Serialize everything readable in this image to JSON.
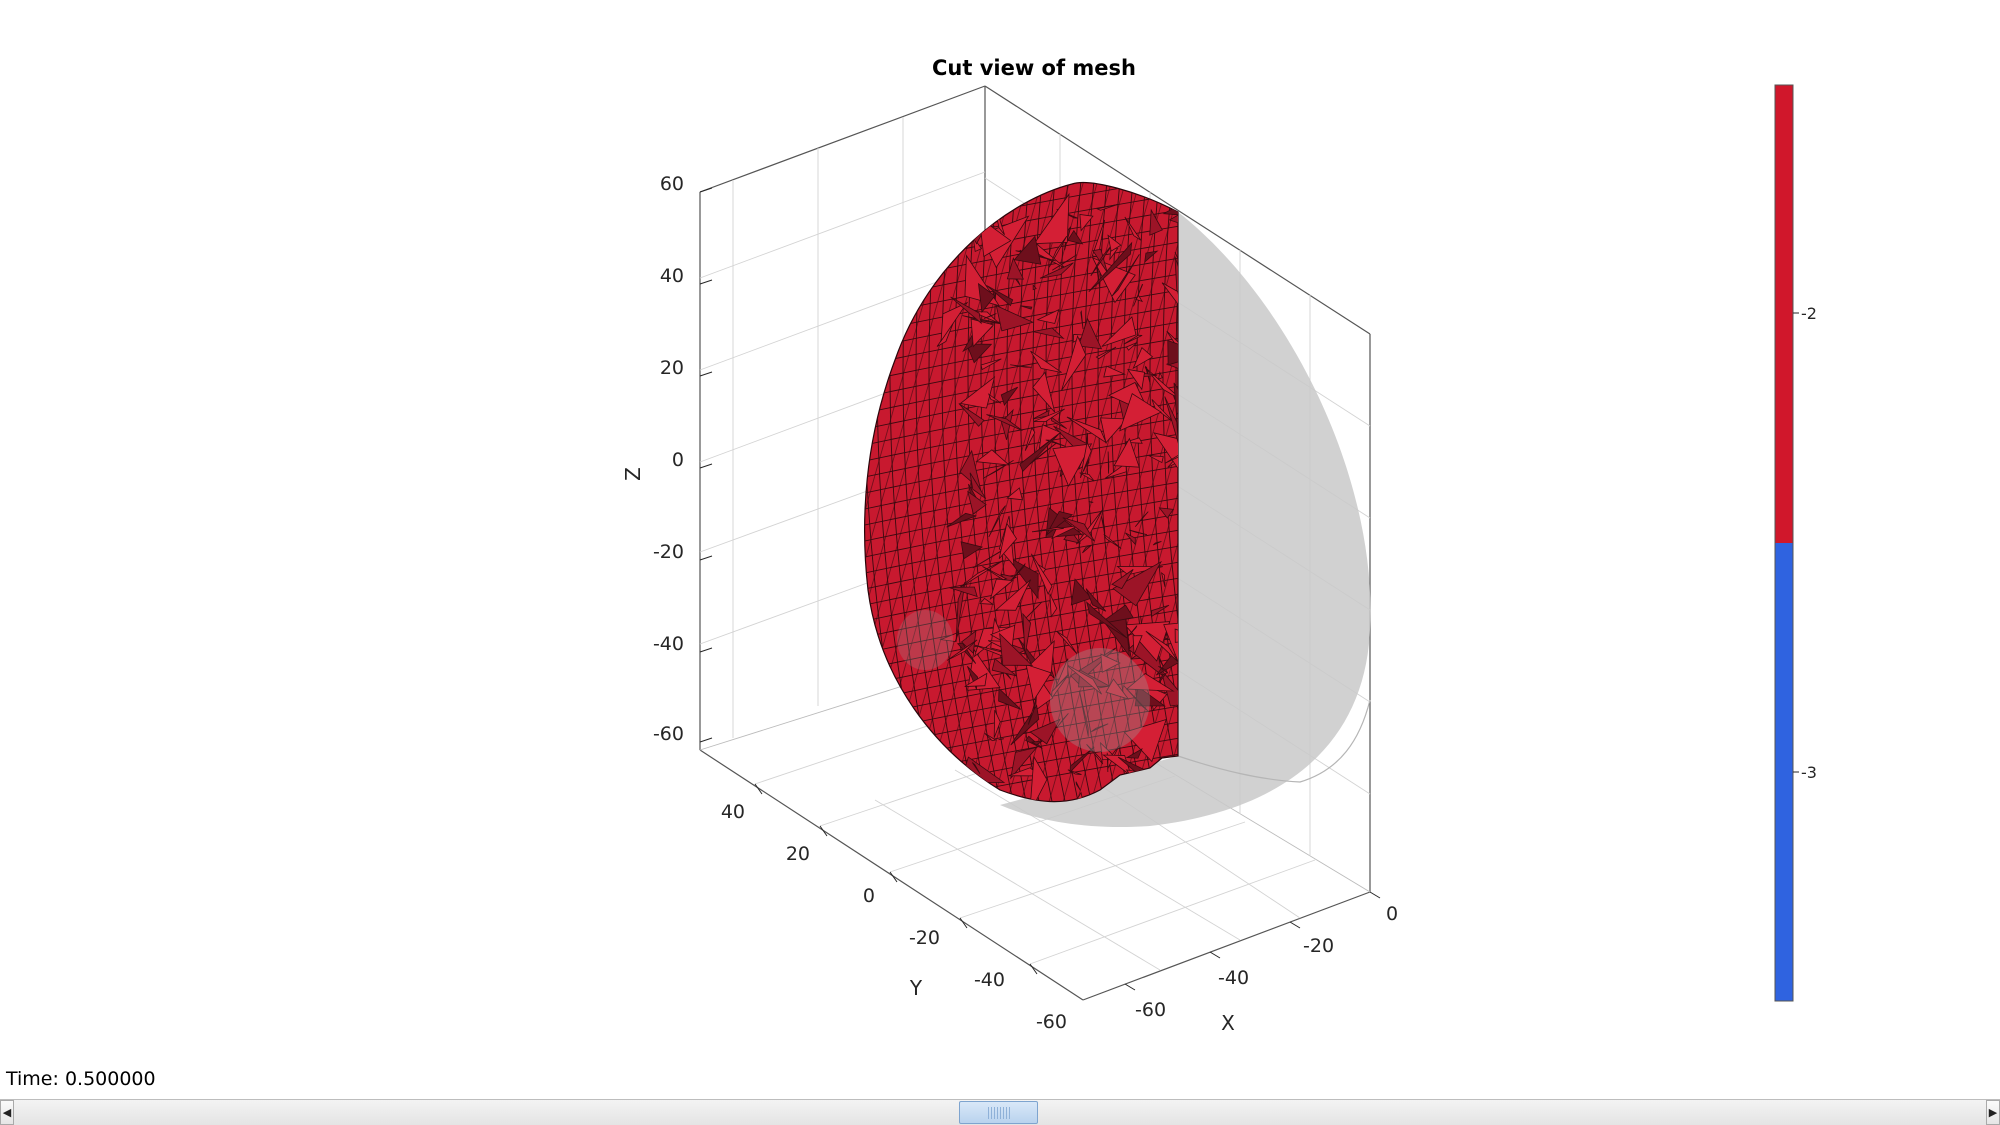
{
  "figure": {
    "title": "Cut view of mesh",
    "time_label": "Time: 0.500000",
    "colors": {
      "mesh_face": "#c8192f",
      "mesh_edge": "#3a0a10",
      "ghost_surface": "#c9c9c9",
      "colorbar_high": "#d0172b",
      "colorbar_low": "#2f63e0"
    }
  },
  "axes": {
    "xlabel": "X",
    "ylabel": "Y",
    "zlabel": "Z",
    "x_ticks": [
      "0",
      "-20",
      "-40",
      "-60"
    ],
    "y_ticks": [
      "40",
      "20",
      "0",
      "-20",
      "-40",
      "-60"
    ],
    "z_ticks": [
      "60",
      "40",
      "20",
      "0",
      "-20",
      "-40",
      "-60"
    ],
    "grid": true,
    "box": true
  },
  "colorbar": {
    "ticks": [
      "-2",
      "-3"
    ],
    "segments": [
      {
        "label": "-2",
        "color": "#d0172b"
      },
      {
        "label": "-3",
        "color": "#2f63e0"
      }
    ]
  },
  "slider": {
    "value_fraction": 0.5,
    "left_arrow": "◀",
    "right_arrow": "▶"
  }
}
